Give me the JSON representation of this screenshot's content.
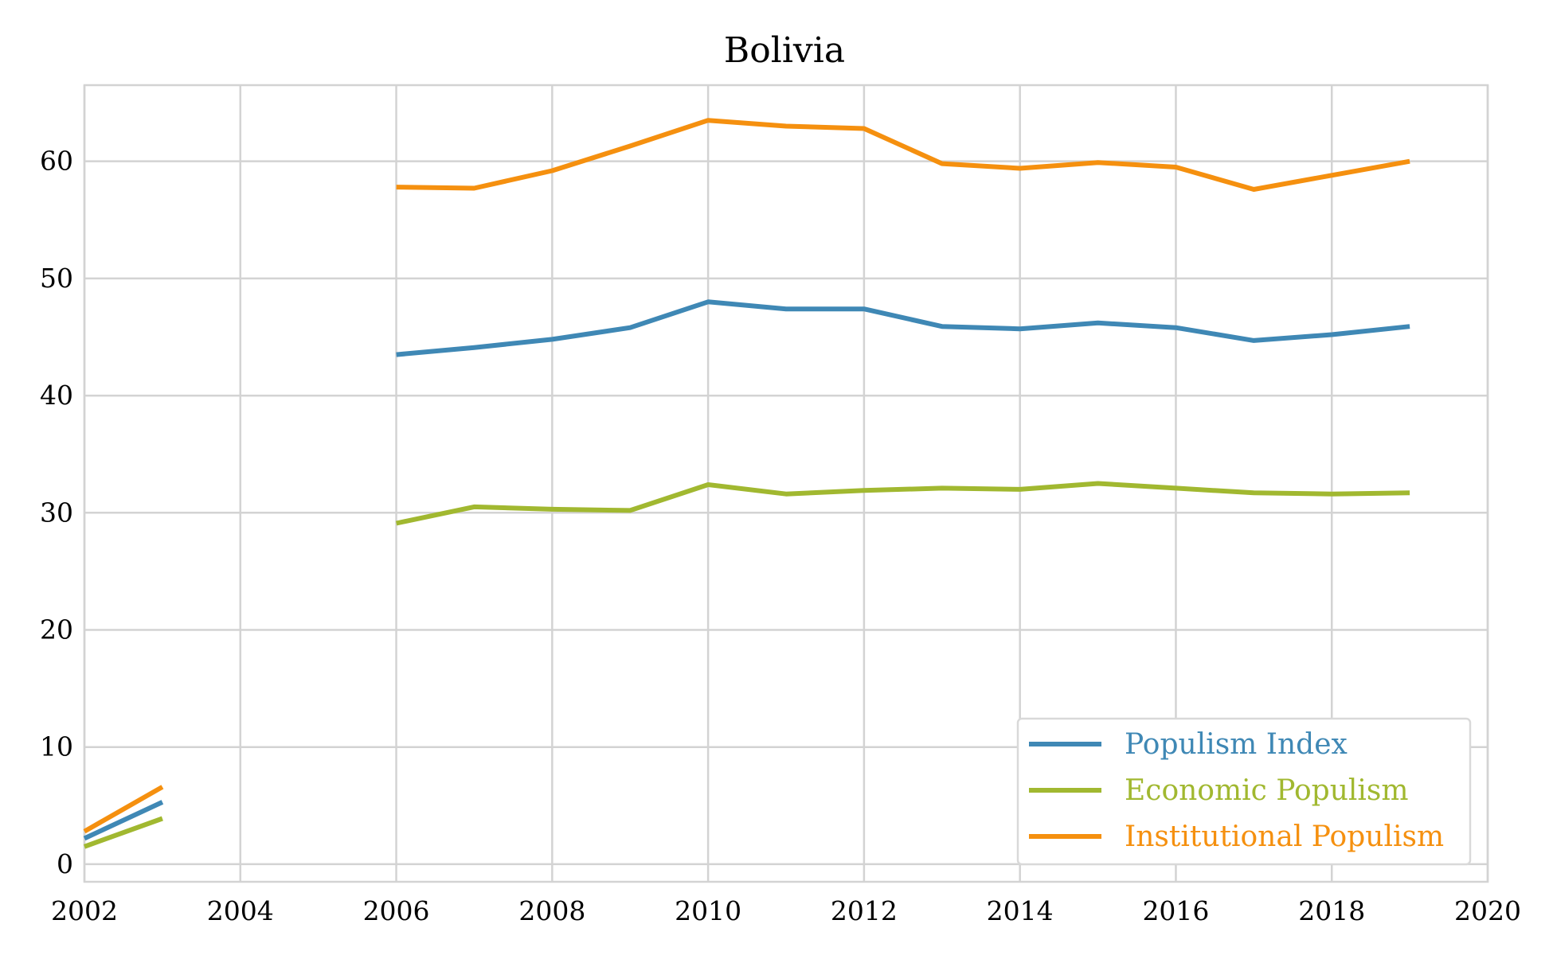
{
  "chart_data": {
    "type": "line",
    "title": "Bolivia",
    "xlabel": "",
    "ylabel": "",
    "xlim": [
      2002,
      2020
    ],
    "ylim": [
      -1.5,
      66.5
    ],
    "xticks": [
      "2002",
      "2004",
      "2006",
      "2008",
      "2010",
      "2012",
      "2014",
      "2016",
      "2018",
      "2020"
    ],
    "yticks": [
      "0",
      "10",
      "20",
      "30",
      "40",
      "50",
      "60"
    ],
    "grid": true,
    "legend_position": "bottom-right",
    "x": [
      2002,
      2003,
      2004,
      2005,
      2006,
      2007,
      2008,
      2009,
      2010,
      2011,
      2012,
      2013,
      2014,
      2015,
      2016,
      2017,
      2018,
      2019
    ],
    "series": [
      {
        "name": "Populism Index",
        "color": "#3f88b5",
        "values": [
          2.2,
          5.3,
          null,
          null,
          43.5,
          44.1,
          44.8,
          45.8,
          48.0,
          47.4,
          47.4,
          45.9,
          45.7,
          46.2,
          45.8,
          44.7,
          45.2,
          45.9
        ]
      },
      {
        "name": "Economic Populism",
        "color": "#a1b830",
        "values": [
          1.5,
          3.9,
          null,
          null,
          29.1,
          30.5,
          30.3,
          30.2,
          32.4,
          31.6,
          31.9,
          32.1,
          32.0,
          32.5,
          32.1,
          31.7,
          31.6,
          31.7
        ]
      },
      {
        "name": "Institutional Populism",
        "color": "#f5900f",
        "values": [
          2.8,
          6.6,
          null,
          null,
          57.8,
          57.7,
          59.2,
          61.3,
          63.5,
          63.0,
          62.8,
          59.8,
          59.4,
          59.9,
          59.5,
          57.6,
          58.8,
          60.0
        ]
      }
    ]
  }
}
